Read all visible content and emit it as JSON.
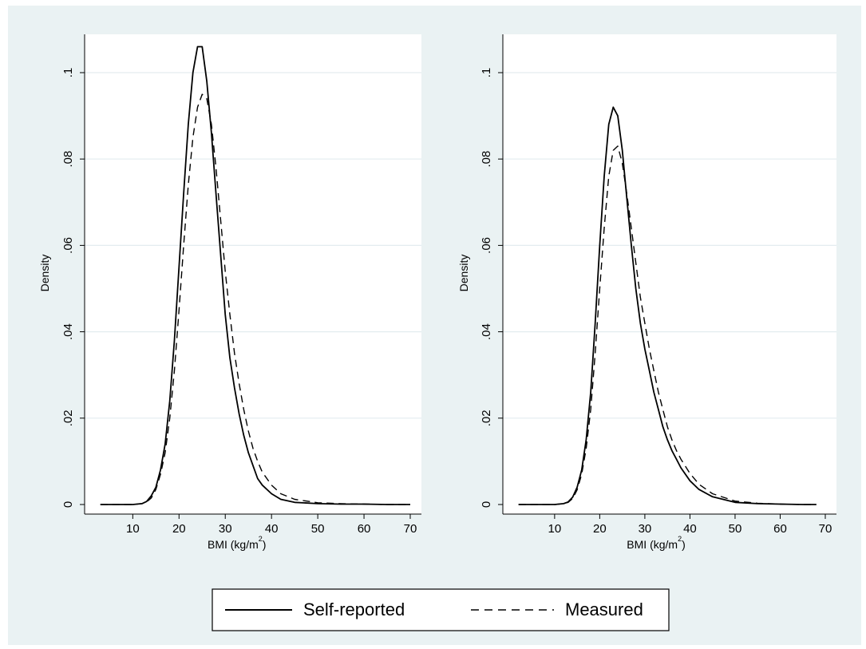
{
  "colors": {
    "background": "#eaf2f3",
    "plot_bg": "#ffffff",
    "grid": "#e3ecef",
    "line": "#000000"
  },
  "legend": {
    "placement": "bottom-center",
    "items": [
      {
        "label": "Self-reported",
        "style": "solid"
      },
      {
        "label": "Measured",
        "style": "dashed"
      }
    ]
  },
  "chart_data": [
    {
      "type": "line",
      "xlabel": "BMI (kg/m",
      "xlabel_sup": "2",
      "xlabel_close": ")",
      "ylabel": "Density",
      "xlim": [
        2,
        70
      ],
      "ylim": [
        0,
        0.1
      ],
      "xticks": [
        10,
        20,
        30,
        40,
        50,
        60,
        70
      ],
      "xtick_labels": [
        "10",
        "20",
        "30",
        "40",
        "50",
        "60",
        "70"
      ],
      "yticks": [
        0,
        0.02,
        0.04,
        0.06,
        0.08,
        0.1
      ],
      "ytick_labels": [
        "0",
        ".02",
        ".04",
        ".06",
        ".08",
        ".1"
      ],
      "grid": true,
      "series": [
        {
          "name": "Self-reported",
          "style": "solid",
          "x": [
            3,
            10,
            12,
            13,
            14,
            15,
            16,
            17,
            18,
            19,
            20,
            21,
            22,
            23,
            24,
            25,
            26,
            27,
            28,
            29,
            30,
            31,
            32,
            33,
            34,
            35,
            36,
            37,
            38,
            40,
            42,
            45,
            50,
            55,
            60,
            65,
            70
          ],
          "y": [
            0,
            0,
            0.0002,
            0.0007,
            0.002,
            0.004,
            0.008,
            0.014,
            0.024,
            0.038,
            0.055,
            0.072,
            0.088,
            0.1,
            0.106,
            0.106,
            0.098,
            0.086,
            0.072,
            0.058,
            0.044,
            0.034,
            0.027,
            0.021,
            0.016,
            0.012,
            0.009,
            0.006,
            0.0045,
            0.0025,
            0.0012,
            0.0005,
            0.0002,
            0.0001,
            0.0001,
            0,
            0
          ]
        },
        {
          "name": "Measured",
          "style": "dashed",
          "x": [
            3,
            10,
            12,
            13,
            14,
            15,
            16,
            17,
            18,
            19,
            20,
            21,
            22,
            23,
            24,
            25,
            26,
            27,
            28,
            29,
            30,
            31,
            32,
            33,
            34,
            35,
            36,
            37,
            38,
            40,
            42,
            45,
            50,
            55,
            60,
            65,
            70
          ],
          "y": [
            0,
            0,
            0.0002,
            0.0006,
            0.0015,
            0.0035,
            0.007,
            0.012,
            0.02,
            0.031,
            0.045,
            0.06,
            0.074,
            0.085,
            0.092,
            0.095,
            0.094,
            0.088,
            0.078,
            0.066,
            0.054,
            0.044,
            0.035,
            0.028,
            0.022,
            0.017,
            0.013,
            0.01,
            0.0075,
            0.0045,
            0.0025,
            0.0012,
            0.0004,
            0.0002,
            0.0001,
            0,
            0
          ]
        }
      ]
    },
    {
      "type": "line",
      "xlabel": "BMI (kg/m",
      "xlabel_sup": "2",
      "xlabel_close": ")",
      "ylabel": "Density",
      "xlim": [
        1,
        70
      ],
      "ylim": [
        0,
        0.1
      ],
      "xticks": [
        10,
        20,
        30,
        40,
        50,
        60,
        70
      ],
      "xtick_labels": [
        "10",
        "20",
        "30",
        "40",
        "50",
        "60",
        "70"
      ],
      "yticks": [
        0,
        0.02,
        0.04,
        0.06,
        0.08,
        0.1
      ],
      "ytick_labels": [
        "0",
        ".02",
        ".04",
        ".06",
        ".08",
        ".1"
      ],
      "grid": true,
      "series": [
        {
          "name": "Self-reported",
          "style": "solid",
          "x": [
            2,
            10,
            12,
            13,
            14,
            15,
            16,
            17,
            18,
            19,
            20,
            21,
            22,
            23,
            24,
            25,
            26,
            27,
            28,
            29,
            30,
            31,
            32,
            33,
            34,
            35,
            36,
            37,
            38,
            40,
            42,
            45,
            50,
            55,
            60,
            65,
            68
          ],
          "y": [
            0,
            0,
            0.0002,
            0.0006,
            0.0017,
            0.004,
            0.008,
            0.015,
            0.026,
            0.042,
            0.06,
            0.076,
            0.088,
            0.092,
            0.09,
            0.082,
            0.071,
            0.06,
            0.05,
            0.042,
            0.036,
            0.031,
            0.026,
            0.022,
            0.018,
            0.015,
            0.0125,
            0.0105,
            0.0085,
            0.0055,
            0.0035,
            0.0018,
            0.0005,
            0.0002,
            0.0001,
            0,
            0
          ]
        },
        {
          "name": "Measured",
          "style": "dashed",
          "x": [
            2,
            10,
            12,
            13,
            14,
            15,
            16,
            17,
            18,
            19,
            20,
            21,
            22,
            23,
            24,
            25,
            26,
            27,
            28,
            29,
            30,
            31,
            32,
            33,
            34,
            35,
            36,
            37,
            38,
            40,
            42,
            45,
            50,
            55,
            60,
            65,
            68
          ],
          "y": [
            0,
            0,
            0.0002,
            0.0005,
            0.0014,
            0.0034,
            0.007,
            0.013,
            0.022,
            0.035,
            0.05,
            0.064,
            0.076,
            0.082,
            0.083,
            0.079,
            0.072,
            0.064,
            0.056,
            0.048,
            0.042,
            0.036,
            0.031,
            0.026,
            0.022,
            0.018,
            0.015,
            0.0125,
            0.0105,
            0.0072,
            0.0047,
            0.0025,
            0.0008,
            0.0003,
            0.0001,
            0,
            0
          ]
        }
      ]
    }
  ]
}
